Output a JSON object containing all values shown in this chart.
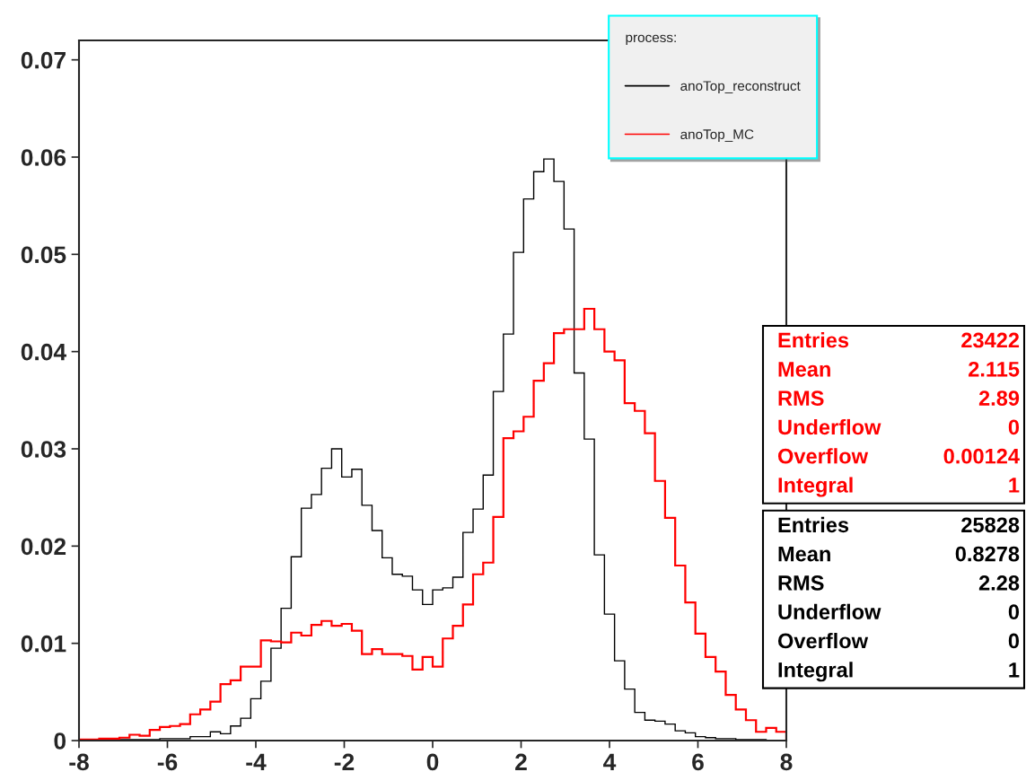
{
  "chart_data": {
    "type": "histogram",
    "bins": [
      -8,
      -7.7714,
      -7.5429,
      -7.3143,
      -7.0857,
      -6.8571,
      -6.6286,
      -6.4,
      -6.1714,
      -5.9429,
      -5.7143,
      -5.4857,
      -5.2571,
      -5.0286,
      -4.8,
      -4.5714,
      -4.3429,
      -4.1143,
      -3.8857,
      -3.6571,
      -3.4286,
      -3.2,
      -2.9714,
      -2.7429,
      -2.5143,
      -2.2857,
      -2.0571,
      -1.8286,
      -1.6,
      -1.3714,
      -1.1429,
      -0.9143,
      -0.6857,
      -0.4571,
      -0.2286,
      0,
      0.2286,
      0.4571,
      0.6857,
      0.9143,
      1.1429,
      1.3714,
      1.6,
      1.8286,
      2.0571,
      2.2857,
      2.5143,
      2.7429,
      2.9714,
      3.2,
      3.4286,
      3.6571,
      3.8857,
      4.1143,
      4.3429,
      4.5714,
      4.8,
      5.0286,
      5.2571,
      5.4857,
      5.7143,
      5.9429,
      6.1714,
      6.4,
      6.6286,
      6.8571,
      7.0857,
      7.3143,
      7.5429,
      7.7714,
      8
    ],
    "series": [
      {
        "name": "anoTop_reconstruct",
        "color": "#000000",
        "values": [
          0,
          0,
          0,
          0,
          0.0001,
          0.0001,
          0.0001,
          0.0001,
          0.0002,
          0.0002,
          0.0002,
          0.0004,
          0.0004,
          0.0009,
          0.0007,
          0.0015,
          0.0023,
          0.0043,
          0.0061,
          0.0095,
          0.0136,
          0.0189,
          0.0239,
          0.0253,
          0.028,
          0.03,
          0.0271,
          0.0279,
          0.0242,
          0.0216,
          0.0188,
          0.0171,
          0.0169,
          0.0155,
          0.014,
          0.0155,
          0.0157,
          0.0168,
          0.0214,
          0.0238,
          0.0273,
          0.0359,
          0.0418,
          0.0502,
          0.0557,
          0.0585,
          0.0598,
          0.0575,
          0.0526,
          0.0378,
          0.031,
          0.0191,
          0.013,
          0.0082,
          0.0053,
          0.0029,
          0.0021,
          0.002,
          0.0017,
          0.001,
          0.0008,
          0.0004,
          0.0003,
          0.0002,
          0.0002,
          0.0001,
          0.0001,
          0.0001,
          0,
          0
        ]
      },
      {
        "name": "anoTop_MC",
        "color": "#ff0000",
        "values": [
          0.0001,
          0.0001,
          0.0002,
          0.0002,
          0.0003,
          0.0006,
          0.0005,
          0.0011,
          0.0014,
          0.0015,
          0.0017,
          0.0027,
          0.0032,
          0.004,
          0.0058,
          0.0062,
          0.0076,
          0.0076,
          0.0103,
          0.0102,
          0.0101,
          0.0111,
          0.0108,
          0.0119,
          0.0123,
          0.0118,
          0.012,
          0.0113,
          0.0089,
          0.0094,
          0.0089,
          0.0089,
          0.0087,
          0.0073,
          0.0086,
          0.0076,
          0.0105,
          0.0118,
          0.014,
          0.0171,
          0.0183,
          0.023,
          0.0311,
          0.0318,
          0.0333,
          0.037,
          0.0388,
          0.0419,
          0.0423,
          0.0423,
          0.0444,
          0.0423,
          0.04,
          0.0391,
          0.0347,
          0.0339,
          0.0316,
          0.0267,
          0.0229,
          0.018,
          0.0142,
          0.011,
          0.0086,
          0.0071,
          0.0047,
          0.0032,
          0.0021,
          0.0009,
          0.0013,
          0.0009
        ]
      }
    ],
    "legend_title": "process:",
    "legend": "top right",
    "xlim": [
      -8,
      8
    ],
    "xticks": [
      -8,
      -6,
      -4,
      -2,
      0,
      2,
      4,
      6,
      8
    ],
    "ylim": [
      0,
      0.072
    ],
    "yticks": [
      0,
      0.01,
      0.02,
      0.03,
      0.04,
      0.05,
      0.06,
      0.07
    ],
    "grid": false,
    "annotations": [
      "Entries 23422",
      "Mean 2.115",
      "RMS 2.89",
      "Underflow 0",
      "Overflow 0.00124",
      "Integral 1",
      "Entries 25828",
      "Mean 0.8278",
      "RMS 2.28",
      "Underflow 0",
      "Overflow 0",
      "Integral 1"
    ]
  }
}
